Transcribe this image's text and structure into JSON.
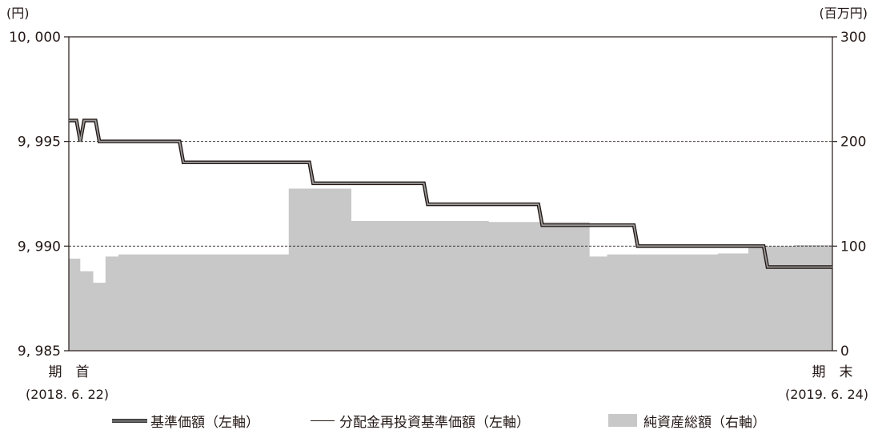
{
  "chart_data": {
    "type": "line",
    "y_left_unit": "(円)",
    "y_right_unit": "(百万円)",
    "y_left_ticks": [
      "10, 000",
      "9, 995",
      "9, 990",
      "9, 985"
    ],
    "y_right_ticks": [
      "300",
      "200",
      "100",
      "0"
    ],
    "ylim_left": [
      9985,
      10000
    ],
    "ylim_right": [
      0,
      300
    ],
    "grid_dashed_at_left": [
      9995,
      9990
    ],
    "x_start_label": "期　首",
    "x_start_date": "(2018. 6. 22)",
    "x_end_label": "期　末",
    "x_end_date": "(2019. 6. 24)",
    "x_range": [
      0,
      100
    ],
    "series": [
      {
        "name": "基準価額（左軸）",
        "axis": "left",
        "style": "thick",
        "color": "#666666",
        "x": [
          0,
          1.0,
          1.5,
          2.0,
          3.5,
          4.0,
          14.5,
          15.0,
          31.5,
          32.0,
          46.5,
          47.0,
          61.5,
          62.0,
          74.0,
          74.5,
          91.0,
          91.5,
          100
        ],
        "values": [
          9996,
          9996,
          9995,
          9996,
          9996,
          9995,
          9995,
          9994,
          9994,
          9993,
          9993,
          9992,
          9992,
          9991,
          9991,
          9990,
          9990,
          9989,
          9989
        ],
        "curve": "step"
      },
      {
        "name": "分配金再投資基準価額（左軸）",
        "axis": "left",
        "style": "thin",
        "color": "#231815",
        "x": [
          0,
          1.0,
          1.5,
          2.0,
          3.5,
          4.0,
          14.5,
          15.0,
          31.5,
          32.0,
          46.5,
          47.0,
          61.5,
          62.0,
          74.0,
          74.5,
          91.0,
          91.5,
          100
        ],
        "values": [
          9996,
          9996,
          9995,
          9996,
          9996,
          9995,
          9995,
          9994,
          9994,
          9993,
          9993,
          9992,
          9992,
          9991,
          9991,
          9990,
          9990,
          9989,
          9989
        ],
        "curve": "step"
      },
      {
        "name": "純資産総額（右軸）",
        "axis": "right",
        "style": "area",
        "color": "#c8c8c9",
        "x": [
          0,
          1.5,
          1.5,
          3.2,
          3.2,
          4.8,
          4.8,
          6.5,
          6.5,
          28.8,
          28.8,
          37.0,
          37.0,
          51.0,
          51.0,
          55.0,
          55.0,
          68.2,
          68.2,
          70.5,
          70.5,
          85.0,
          85.0,
          89.0,
          89.0,
          95.0,
          95.0,
          100
        ],
        "values": [
          88,
          88,
          76,
          76,
          65,
          65,
          90,
          90,
          92,
          92,
          155,
          155,
          124,
          124,
          124,
          124,
          123,
          123,
          90,
          90,
          92,
          92,
          93,
          93,
          100,
          100,
          101,
          101
        ],
        "curve": "linear"
      }
    ],
    "legend": [
      "基準価額（左軸）",
      "分配金再投資基準価額（左軸）",
      "純資産総額（右軸）"
    ],
    "legend_position": "bottom"
  }
}
